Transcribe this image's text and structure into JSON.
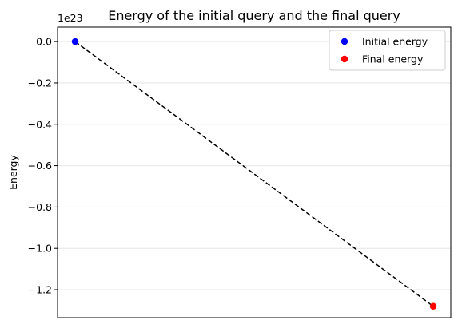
{
  "chart_data": {
    "type": "line",
    "title": "Energy of the initial query and the final query",
    "xlabel": "",
    "ylabel": "Energy",
    "y_offset_label": "1e23",
    "y_scale_exponent": 23,
    "ylim": [
      -1.335,
      0.07
    ],
    "yticks": [
      0.0,
      -0.2,
      -0.4,
      -0.6,
      -0.8,
      -1.0,
      -1.2
    ],
    "ytick_labels": [
      "0.0",
      "−0.2",
      "−0.4",
      "−0.6",
      "−0.8",
      "−1.0",
      "−1.2"
    ],
    "xticks_visible": false,
    "grid": "horizontal",
    "legend_position": "upper right",
    "connector": {
      "style": "dashed",
      "color": "#000000"
    },
    "series": [
      {
        "name": "Initial energy",
        "color": "#0000ff",
        "marker": "circle",
        "x": 0,
        "y": 0.0
      },
      {
        "name": "Final energy",
        "color": "#ff0000",
        "marker": "circle",
        "x": 1,
        "y": -1.28
      }
    ]
  }
}
